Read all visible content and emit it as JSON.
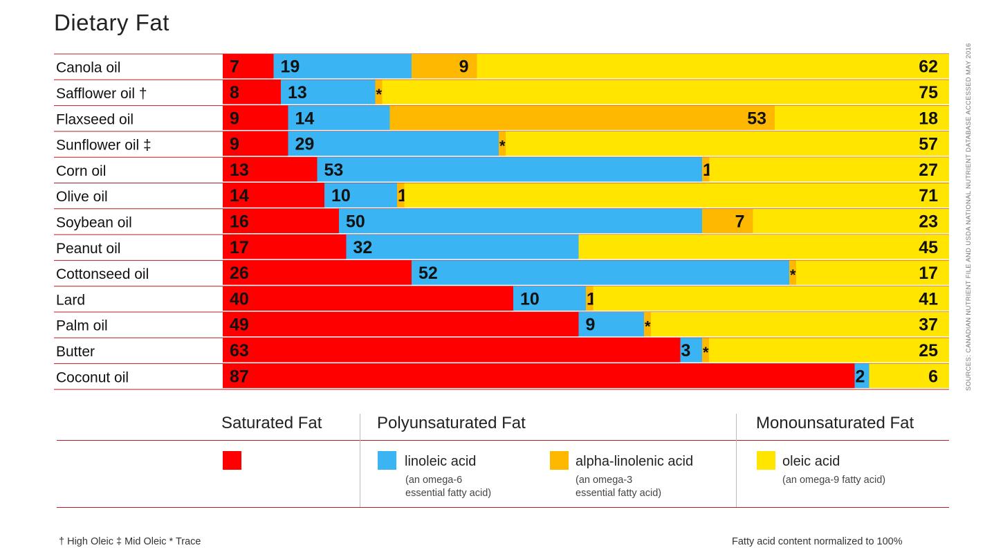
{
  "header": {
    "title": "Dietary Fat"
  },
  "source_note": "SOURCES: CANADIAN NUTRIENT FILE AND USDA NATIONAL NUTRIENT DATABASE     ACCESSED MAY 2016",
  "chart_data": {
    "type": "bar",
    "orientation": "horizontal",
    "stacked": true,
    "normalized_to": 100,
    "title": "Dietary Fat",
    "xlabel": "",
    "ylabel": "",
    "trace_marker": "*",
    "categories": [
      "Canola oil",
      "Safflower oil †",
      "Flaxseed oil",
      "Sunflower oil ‡",
      "Corn oil",
      "Olive oil",
      "Soybean oil",
      "Peanut oil",
      "Cottonseed oil",
      "Lard",
      "Palm oil",
      "Butter",
      "Coconut oil"
    ],
    "series": [
      {
        "name": "Saturated Fat",
        "color": "#ff0000",
        "values": [
          7,
          8,
          9,
          9,
          13,
          14,
          16,
          17,
          26,
          40,
          49,
          63,
          87
        ]
      },
      {
        "name": "linoleic acid",
        "color": "#3ab4f2",
        "values": [
          19,
          13,
          14,
          29,
          53,
          10,
          50,
          32,
          52,
          10,
          9,
          3,
          2
        ]
      },
      {
        "name": "alpha-linolenic acid",
        "color": "#ffb800",
        "values": [
          9,
          "*",
          53,
          "*",
          1,
          1,
          7,
          0,
          "*",
          1,
          "*",
          "*",
          0
        ]
      },
      {
        "name": "oleic acid",
        "color": "#ffe500",
        "values": [
          62,
          75,
          18,
          57,
          27,
          71,
          23,
          45,
          17,
          41,
          37,
          25,
          6
        ]
      }
    ]
  },
  "legend": {
    "groups": [
      {
        "title": "Saturated Fat"
      },
      {
        "title": "Polyunsaturated Fat"
      },
      {
        "title": "Monounsaturated Fat"
      }
    ],
    "items": [
      {
        "name": "",
        "note1": "",
        "note2": "",
        "color": "#ff0000"
      },
      {
        "name": "linoleic acid",
        "note1": "(an omega-6",
        "note2": "essential fatty acid)",
        "color": "#3ab4f2"
      },
      {
        "name": "alpha-linolenic acid",
        "note1": "(an omega-3",
        "note2": "essential fatty acid)",
        "color": "#ffb800"
      },
      {
        "name": "oleic acid",
        "note1": "(an omega-9 fatty acid)",
        "note2": "",
        "color": "#ffe500"
      }
    ]
  },
  "footnotes": {
    "left": "† High Oleic   ‡ Mid Oleic   * Trace",
    "right": "Fatty acid content normalized to 100%"
  }
}
